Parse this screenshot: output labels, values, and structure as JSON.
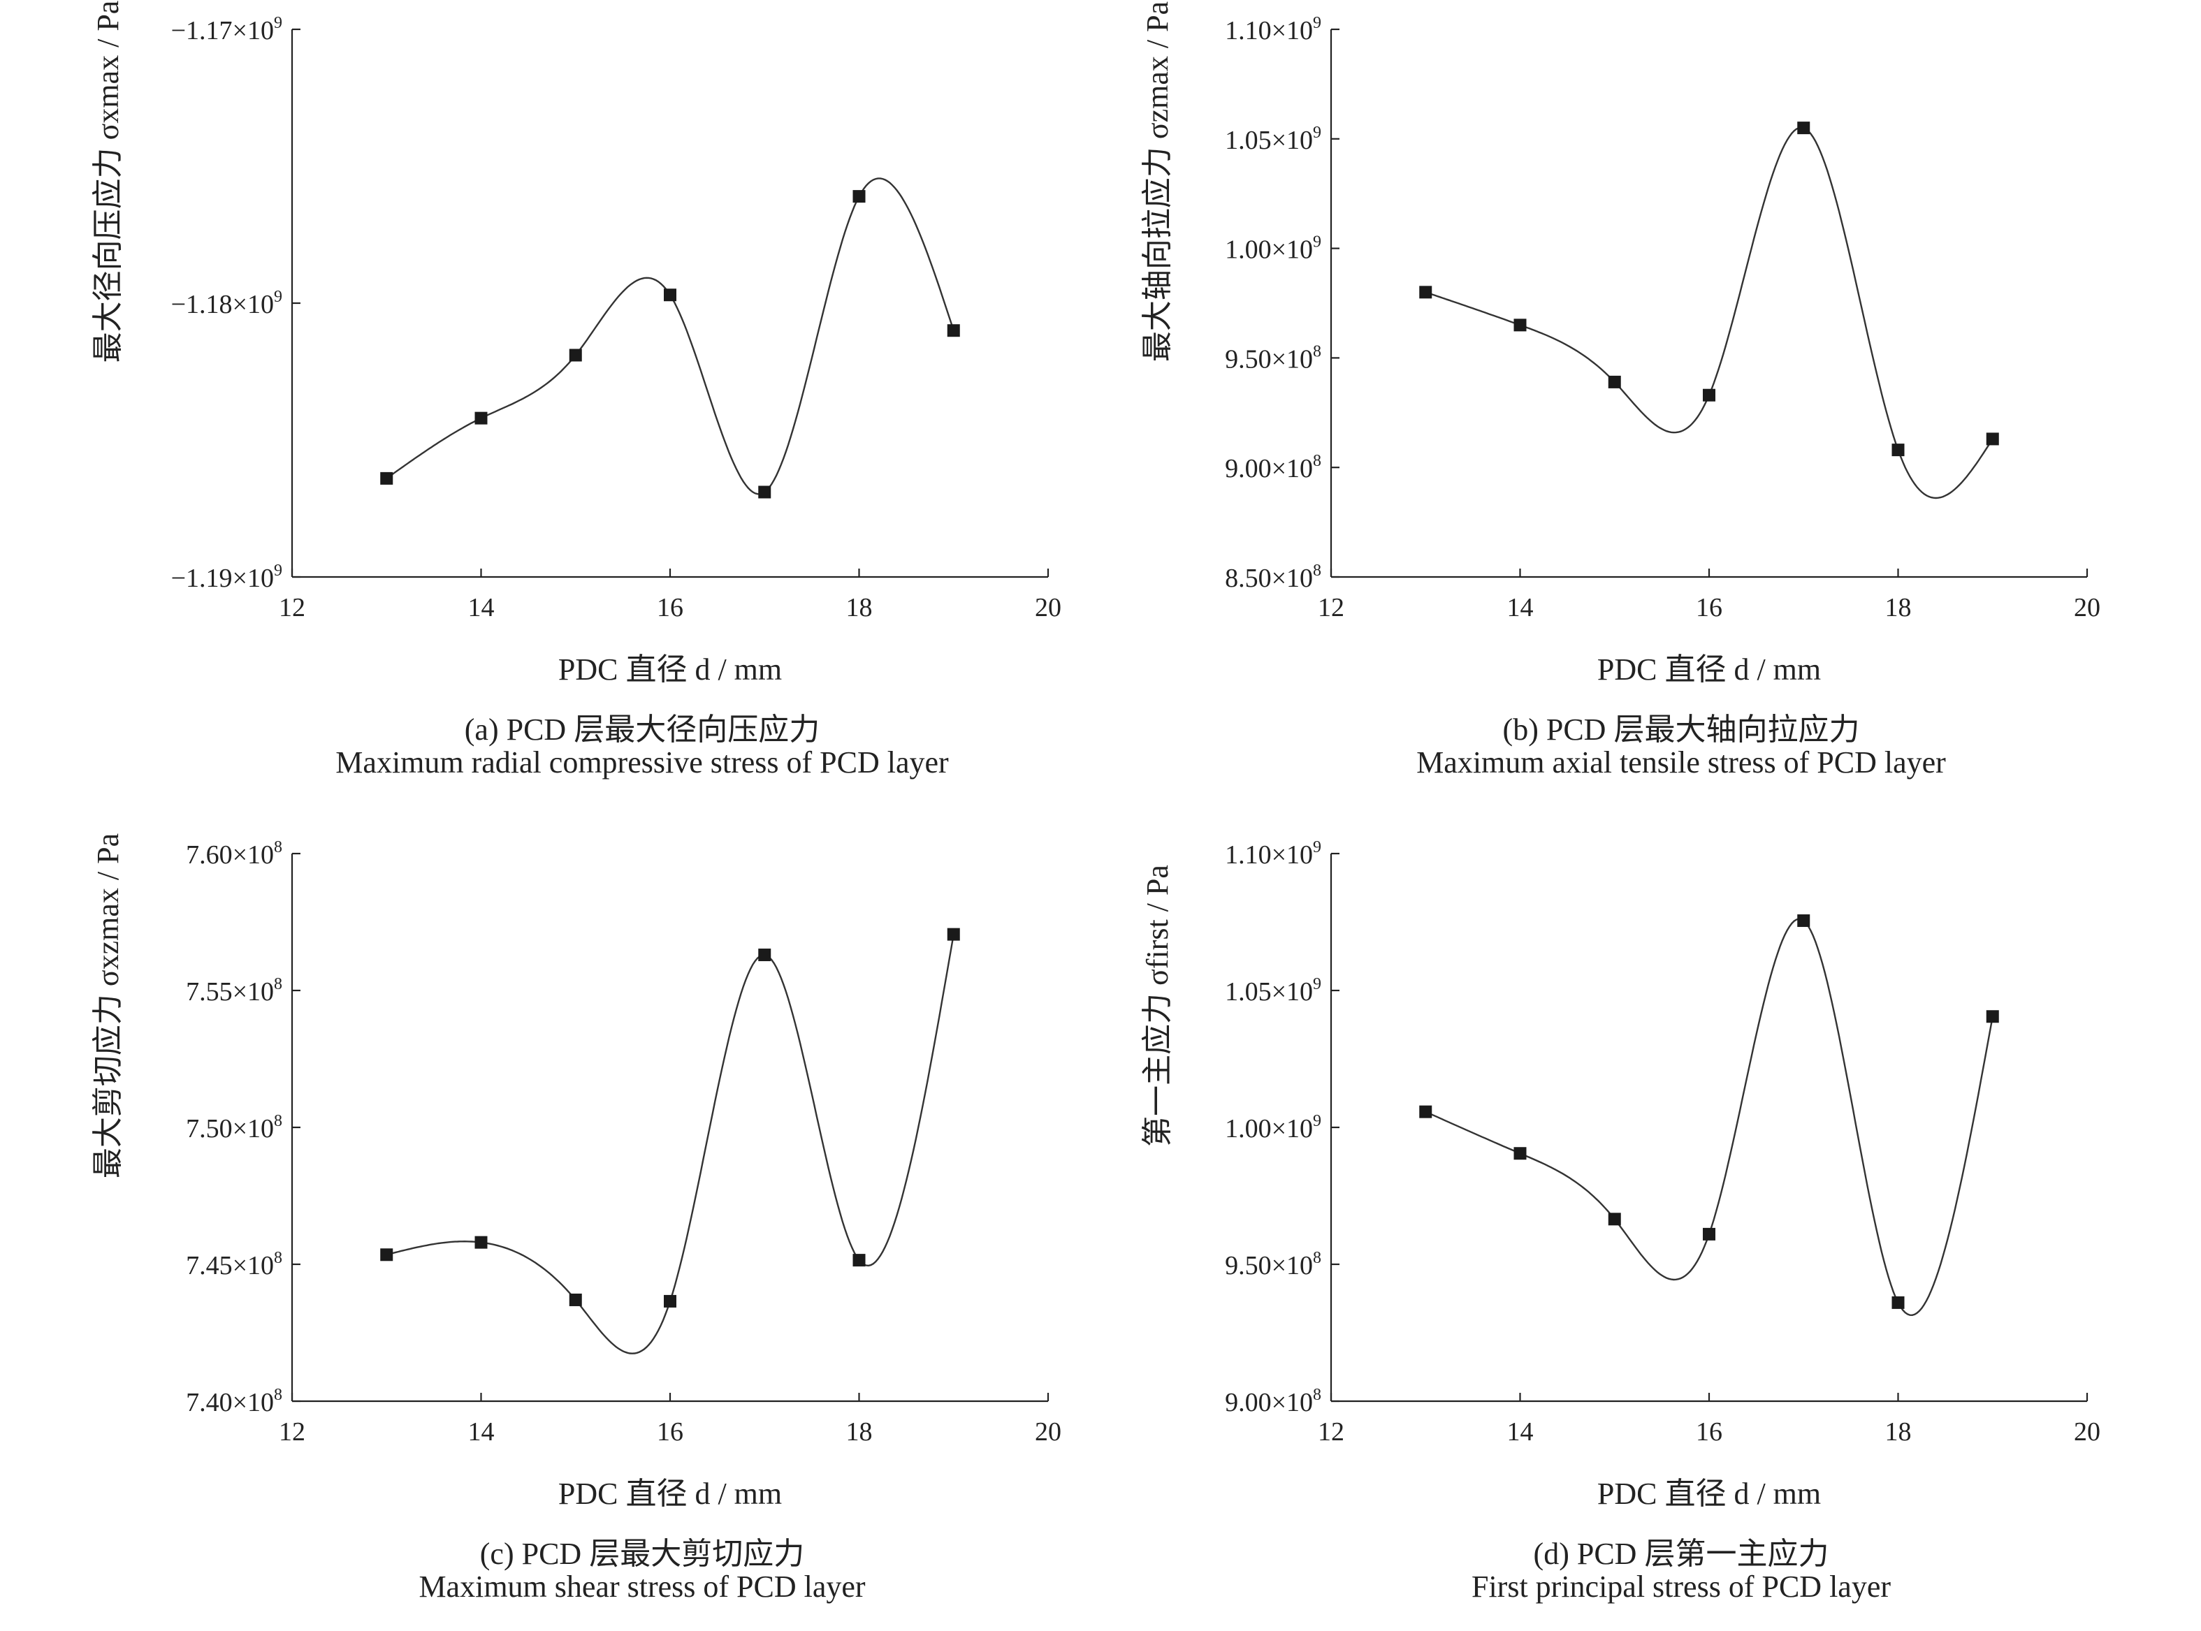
{
  "chart_data": [
    {
      "type": "line",
      "panel_id": "a",
      "caption_cn": "(a) PCD 层最大径向压应力",
      "caption_en": "Maximum radial compressive stress of PCD layer",
      "xlabel": "PDC 直径 d / mm",
      "ylabel": "最大径向压应力 σxmax / Pa",
      "x": [
        13,
        14,
        15,
        16,
        17,
        18,
        19
      ],
      "y": [
        -1186400000.0,
        -1184200000.0,
        -1181900000.0,
        -1179700000.0,
        -1186900000.0,
        -1176100000.0,
        -1181000000.0
      ],
      "xlim": [
        12,
        20
      ],
      "ylim": [
        -1190000000.0,
        -1170000000.0
      ],
      "xticks": [
        "12",
        "14",
        "16",
        "18",
        "20"
      ],
      "yticks": [
        {
          "mant": "−1.19×10",
          "exp": "9"
        },
        {
          "mant": "−1.18×10",
          "exp": "9"
        },
        {
          "mant": "−1.17×10",
          "exp": "9"
        }
      ]
    },
    {
      "type": "line",
      "panel_id": "b",
      "caption_cn": "(b) PCD 层最大轴向拉应力",
      "caption_en": "Maximum axial tensile stress of PCD layer",
      "xlabel": "PDC 直径 d / mm",
      "ylabel": "最大轴向拉应力 σzmax / Pa",
      "x": [
        13,
        14,
        15,
        16,
        17,
        18,
        19
      ],
      "y": [
        980000000.0,
        965000000.0,
        939000000.0,
        933000000.0,
        1055000000.0,
        908000000.0,
        913000000.0
      ],
      "xlim": [
        12,
        20
      ],
      "ylim": [
        850000000.0,
        1100000000.0
      ],
      "xticks": [
        "12",
        "14",
        "16",
        "18",
        "20"
      ],
      "yticks": [
        {
          "mant": "8.50×10",
          "exp": "8"
        },
        {
          "mant": "9.00×10",
          "exp": "8"
        },
        {
          "mant": "9.50×10",
          "exp": "8"
        },
        {
          "mant": "1.00×10",
          "exp": "9"
        },
        {
          "mant": "1.05×10",
          "exp": "9"
        },
        {
          "mant": "1.10×10",
          "exp": "9"
        }
      ]
    },
    {
      "type": "line",
      "panel_id": "c",
      "caption_cn": "(c) PCD 层最大剪切应力",
      "caption_en": "Maximum shear stress of PCD layer",
      "xlabel": "PDC 直径 d / mm",
      "ylabel": "最大剪切应力 σxzmax / Pa",
      "x": [
        13,
        14,
        15,
        16,
        17,
        18,
        19
      ],
      "y": [
        745350000.0,
        745800000.0,
        743700000.0,
        743650000.0,
        756300000.0,
        745150000.0,
        757050000.0
      ],
      "xlim": [
        12,
        20
      ],
      "ylim": [
        740000000.0,
        760000000.0
      ],
      "xticks": [
        "12",
        "14",
        "16",
        "18",
        "20"
      ],
      "yticks": [
        {
          "mant": "7.40×10",
          "exp": "8"
        },
        {
          "mant": "7.45×10",
          "exp": "8"
        },
        {
          "mant": "7.50×10",
          "exp": "8"
        },
        {
          "mant": "7.55×10",
          "exp": "8"
        },
        {
          "mant": "7.60×10",
          "exp": "8"
        }
      ]
    },
    {
      "type": "line",
      "panel_id": "d",
      "caption_cn": "(d) PCD 层第一主应力",
      "caption_en": "First principal stress of PCD layer",
      "xlabel": "PDC 直径 d / mm",
      "ylabel": "第一主应力 σfirst / Pa",
      "x": [
        13,
        14,
        15,
        16,
        17,
        18,
        19
      ],
      "y": [
        1005700000.0,
        990500000.0,
        966500000.0,
        961000000.0,
        1075500000.0,
        936000000.0,
        1040500000.0
      ],
      "xlim": [
        12,
        20
      ],
      "ylim": [
        900000000.0,
        1100000000.0
      ],
      "xticks": [
        "12",
        "14",
        "16",
        "18",
        "20"
      ],
      "yticks": [
        {
          "mant": "9.00×10",
          "exp": "8"
        },
        {
          "mant": "9.50×10",
          "exp": "8"
        },
        {
          "mant": "1.00×10",
          "exp": "9"
        },
        {
          "mant": "1.05×10",
          "exp": "9"
        },
        {
          "mant": "1.10×10",
          "exp": "9"
        }
      ]
    }
  ]
}
